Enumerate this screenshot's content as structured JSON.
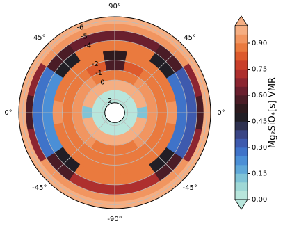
{
  "chart_data": {
    "type": "polar_contour",
    "colorbar_label": "Mg₂SiO₄[s] VMR",
    "clim": [
      0,
      1
    ],
    "cticks": [
      {
        "value": 0,
        "label": "0.00"
      },
      0.15,
      {
        "value": 0.3,
        "label": "0.30"
      },
      0.45,
      {
        "value": 0.6,
        "label": "0.60"
      },
      0.75,
      {
        "value": 0.9,
        "label": "0.90"
      }
    ],
    "colors": [
      "#b8e6dc",
      "#9fd8d6",
      "#7fc3d6",
      "#5fa8d8",
      "#4b8fd6",
      "#3f73c9",
      "#3e5aae",
      "#3a4585",
      "#2e3150",
      "#211e25",
      "#2e1a1e",
      "#4a1c26",
      "#6a1f2e",
      "#8c2531",
      "#ae2f2e",
      "#c93f2a",
      "#dd5a2c",
      "#ea7a3e",
      "#f19560",
      "#f5ae82"
    ],
    "rlim": [
      2.3,
      -6.4
    ],
    "rticks": [
      -6,
      -5,
      -4,
      -2,
      -1,
      0,
      2
    ],
    "thetaticks": [
      {
        "value": 90,
        "label": "90°"
      },
      {
        "value": 45,
        "label": "45°"
      },
      {
        "value": 0,
        "label": "0°"
      },
      {
        "value": -45,
        "label": "-45°"
      },
      {
        "value": -90,
        "label": "-90°"
      },
      {
        "value": 225,
        "label": "-45°"
      },
      {
        "value": 180,
        "label": "0°"
      },
      {
        "value": 135,
        "label": "45°"
      }
    ],
    "r_edges": [
      2.3,
      1.0,
      0.0,
      -1.0,
      -2.0,
      -3.0,
      -4.0,
      -5.0,
      -5.7,
      -6.4
    ],
    "theta_edges": [
      -11.25,
      11.25,
      33.75,
      56.25,
      78.75,
      101.25,
      123.75,
      146.25,
      168.75,
      191.25,
      213.75,
      236.25,
      258.75,
      281.25,
      303.75,
      326.25,
      348.75
    ],
    "z": [
      [
        0.02,
        0.02,
        0.02,
        0.02,
        0.02,
        0.02,
        0.02,
        0.02,
        0.02,
        0.02,
        0.02,
        0.02,
        0.02,
        0.02,
        0.02,
        0.02
      ],
      [
        0.1,
        0.95,
        0.95,
        0.95,
        0.95,
        0.95,
        0.95,
        0.95,
        0.1,
        0.95,
        0.95,
        0.95,
        0.95,
        0.95,
        0.95,
        0.95
      ],
      [
        0.93,
        0.93,
        0.93,
        0.85,
        0.85,
        0.85,
        0.93,
        0.93,
        0.93,
        0.93,
        0.93,
        0.85,
        0.85,
        0.85,
        0.93,
        0.93
      ],
      [
        0.85,
        0.85,
        0.85,
        0.8,
        0.55,
        0.8,
        0.85,
        0.85,
        0.85,
        0.85,
        0.85,
        0.85,
        0.85,
        0.85,
        0.85,
        0.85
      ],
      [
        0.9,
        0.88,
        0.88,
        0.88,
        0.5,
        0.88,
        0.88,
        0.88,
        0.9,
        0.88,
        0.88,
        0.88,
        0.88,
        0.88,
        0.88,
        0.88
      ],
      [
        0.25,
        0.25,
        0.45,
        0.85,
        0.85,
        0.85,
        0.45,
        0.22,
        0.22,
        0.22,
        0.45,
        0.88,
        0.88,
        0.88,
        0.45,
        0.25
      ],
      [
        0.3,
        0.3,
        0.55,
        0.6,
        0.6,
        0.6,
        0.55,
        0.25,
        0.25,
        0.25,
        0.55,
        0.7,
        0.7,
        0.7,
        0.55,
        0.3
      ],
      [
        0.55,
        0.65,
        0.92,
        0.92,
        0.92,
        0.92,
        0.92,
        0.65,
        0.55,
        0.65,
        0.92,
        0.92,
        0.92,
        0.92,
        0.92,
        0.65
      ],
      [
        0.97,
        0.97,
        0.97,
        0.97,
        0.97,
        0.97,
        0.97,
        0.97,
        0.97,
        0.97,
        0.97,
        0.97,
        0.97,
        0.97,
        0.97,
        0.97
      ]
    ]
  }
}
